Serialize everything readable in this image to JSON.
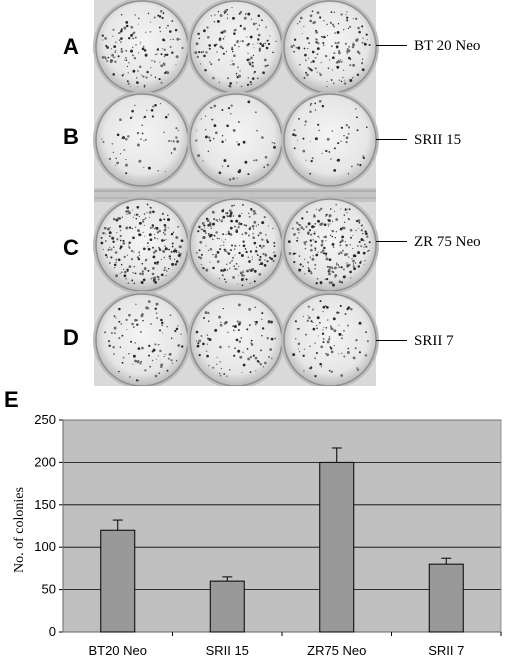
{
  "rows": [
    {
      "letter": "A",
      "name": "BT 20 Neo",
      "density": "high"
    },
    {
      "letter": "B",
      "name": "SRII 15",
      "density": "low"
    },
    {
      "letter": "C",
      "name": "ZR 75 Neo",
      "density": "very-high"
    },
    {
      "letter": "D",
      "name": "SRII 7",
      "density": "medium"
    }
  ],
  "panel_label": "E",
  "chart_data": {
    "type": "bar",
    "title": "",
    "xlabel": "",
    "ylabel": "No. of colonies",
    "categories": [
      "BT20 Neo",
      "SRII 15",
      "ZR75 Neo",
      "SRII 7"
    ],
    "values": [
      120,
      60,
      200,
      80
    ],
    "errors": [
      12,
      5,
      17,
      7
    ],
    "ylim": [
      0,
      250
    ],
    "yticks": [
      0,
      50,
      100,
      150,
      200,
      250
    ],
    "grid": true,
    "colors": {
      "bar": "#999999",
      "plot_bg": "#c0c0c0",
      "grid": "#000000"
    }
  }
}
